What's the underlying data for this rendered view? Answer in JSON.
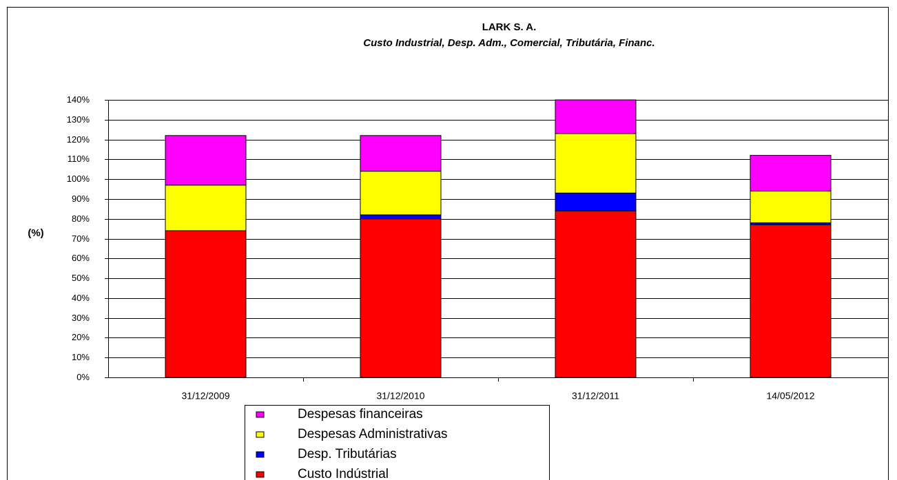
{
  "chart_data": {
    "type": "stacked_bar",
    "title": "LARK S. A.",
    "subtitle": "Custo Industrial,  Desp. Adm., Comercial, Tributária, Financ.",
    "y_label": "(%)",
    "categories": [
      "31/12/2009",
      "31/12/2010",
      "31/12/2011",
      "14/05/2012"
    ],
    "series": [
      {
        "name": "Custo Indústrial",
        "color": "#ff0000",
        "values": [
          74,
          80,
          84,
          77
        ]
      },
      {
        "name": "Desp. Tributárias",
        "color": "#0000ff",
        "values": [
          0,
          2,
          9,
          1
        ]
      },
      {
        "name": "Despesas Administrativas",
        "color": "#ffff00",
        "values": [
          23,
          22,
          30,
          16
        ]
      },
      {
        "name": "Despesas financeiras",
        "color": "#ff00ff",
        "values": [
          25,
          18,
          17,
          18
        ]
      }
    ],
    "ylim": [
      0,
      140
    ],
    "yticks": [
      {
        "value": 0,
        "label": "0%"
      },
      {
        "value": 10,
        "label": "10%"
      },
      {
        "value": 20,
        "label": "20%"
      },
      {
        "value": 30,
        "label": "30%"
      },
      {
        "value": 40,
        "label": "40%"
      },
      {
        "value": 50,
        "label": "50%"
      },
      {
        "value": 60,
        "label": "60%"
      },
      {
        "value": 70,
        "label": "70%"
      },
      {
        "value": 80,
        "label": "80%"
      },
      {
        "value": 90,
        "label": "90%"
      },
      {
        "value": 100,
        "label": "100%"
      },
      {
        "value": 110,
        "label": "110%"
      },
      {
        "value": 120,
        "label": "120%"
      },
      {
        "value": 130,
        "label": "130%"
      },
      {
        "value": 140,
        "label": "140%"
      }
    ],
    "grid": true
  }
}
